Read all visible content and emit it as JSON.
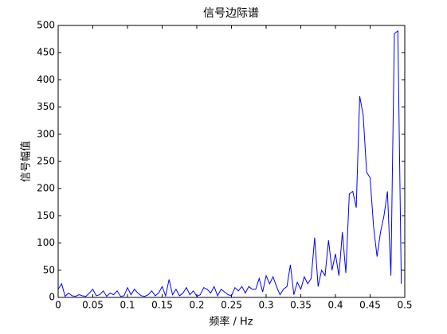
{
  "chart_data": {
    "type": "line",
    "title": "信号边际谱",
    "x_label": "频率 / Hz",
    "y_label": "信号幅值",
    "x": [
      0,
      0.005,
      0.01,
      0.015,
      0.02,
      0.025,
      0.03,
      0.035,
      0.04,
      0.045,
      0.05,
      0.055,
      0.06,
      0.065,
      0.07,
      0.075,
      0.08,
      0.085,
      0.09,
      0.095,
      0.1,
      0.105,
      0.11,
      0.115,
      0.12,
      0.125,
      0.13,
      0.135,
      0.14,
      0.145,
      0.15,
      0.155,
      0.16,
      0.165,
      0.17,
      0.175,
      0.18,
      0.185,
      0.19,
      0.195,
      0.2,
      0.205,
      0.21,
      0.215,
      0.22,
      0.225,
      0.23,
      0.235,
      0.24,
      0.245,
      0.25,
      0.255,
      0.26,
      0.265,
      0.27,
      0.275,
      0.28,
      0.285,
      0.29,
      0.295,
      0.3,
      0.305,
      0.31,
      0.315,
      0.32,
      0.325,
      0.33,
      0.335,
      0.34,
      0.345,
      0.35,
      0.355,
      0.36,
      0.365,
      0.37,
      0.375,
      0.38,
      0.385,
      0.39,
      0.395,
      0.4,
      0.405,
      0.41,
      0.415,
      0.42,
      0.425,
      0.43,
      0.435,
      0.44,
      0.445,
      0.45,
      0.455,
      0.46,
      0.465,
      0.47,
      0.475,
      0.48,
      0.485,
      0.49,
      0.495
    ],
    "values": [
      15,
      25,
      2,
      8,
      3,
      2,
      5,
      3,
      2,
      8,
      15,
      3,
      5,
      12,
      2,
      8,
      5,
      12,
      2,
      3,
      18,
      5,
      15,
      8,
      3,
      2,
      5,
      12,
      3,
      8,
      20,
      3,
      33,
      5,
      15,
      3,
      8,
      18,
      5,
      12,
      2,
      5,
      18,
      15,
      8,
      20,
      3,
      15,
      10,
      5,
      3,
      18,
      12,
      20,
      8,
      20,
      15,
      15,
      35,
      10,
      40,
      25,
      38,
      20,
      5,
      15,
      20,
      60,
      5,
      28,
      15,
      38,
      25,
      35,
      110,
      20,
      50,
      40,
      105,
      50,
      80,
      40,
      120,
      45,
      190,
      195,
      165,
      370,
      335,
      230,
      220,
      130,
      75,
      120,
      150,
      195,
      40,
      485,
      490,
      25
    ],
    "color": "#0000ff",
    "xlim": [
      0,
      0.5
    ],
    "xticks": [
      0,
      0.05,
      0.1,
      0.15,
      0.2,
      0.25,
      0.3,
      0.35,
      0.4,
      0.45,
      0.5
    ],
    "ylim": [
      0,
      500
    ],
    "yticks": [
      0,
      50,
      100,
      150,
      200,
      250,
      300,
      350,
      400,
      450,
      500
    ]
  }
}
